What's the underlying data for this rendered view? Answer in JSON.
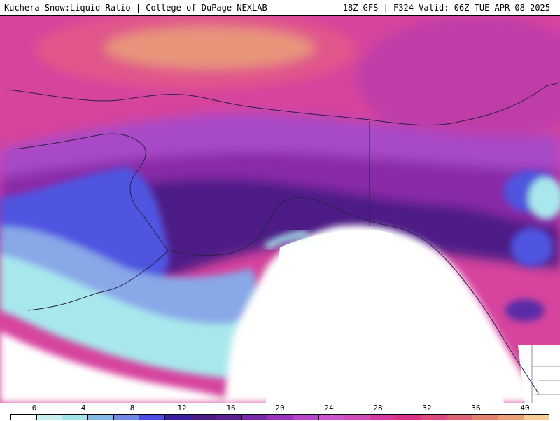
{
  "header": {
    "title": "Kuchera Snow:Liquid Ratio | College of DuPage NEXLAB",
    "run_info": "18Z GFS | F324 Valid: 06Z TUE APR 08 2025"
  },
  "legend": {
    "tick_labels": [
      "0",
      "4",
      "8",
      "12",
      "16",
      "20",
      "24",
      "28",
      "32",
      "36",
      "40"
    ],
    "colors": [
      "#ffffff",
      "#c8f0f0",
      "#9ee4e8",
      "#86b8e6",
      "#6f8ae2",
      "#4b4ee0",
      "#3a1f9e",
      "#4a1a86",
      "#5f2096",
      "#7a2aa8",
      "#9a34c0",
      "#b844cc",
      "#cc54cc",
      "#d04ab8",
      "#d43aa0",
      "#d83288",
      "#dc4a80",
      "#e06478",
      "#e4806c",
      "#eca07a",
      "#f6cc98"
    ]
  },
  "colors": {
    "ocean_pacific": "#d8449c",
    "arctic_high": "#e8947a",
    "interior": "#9a40c4",
    "low_ratio_blue": "#5054e0",
    "coastal_cyan": "#a8e8ec",
    "no_snow": "#ffffff",
    "border_lines": "#3a2a55"
  },
  "icons": {
    "basemap": "alaska-coastline-and-state-borders"
  }
}
